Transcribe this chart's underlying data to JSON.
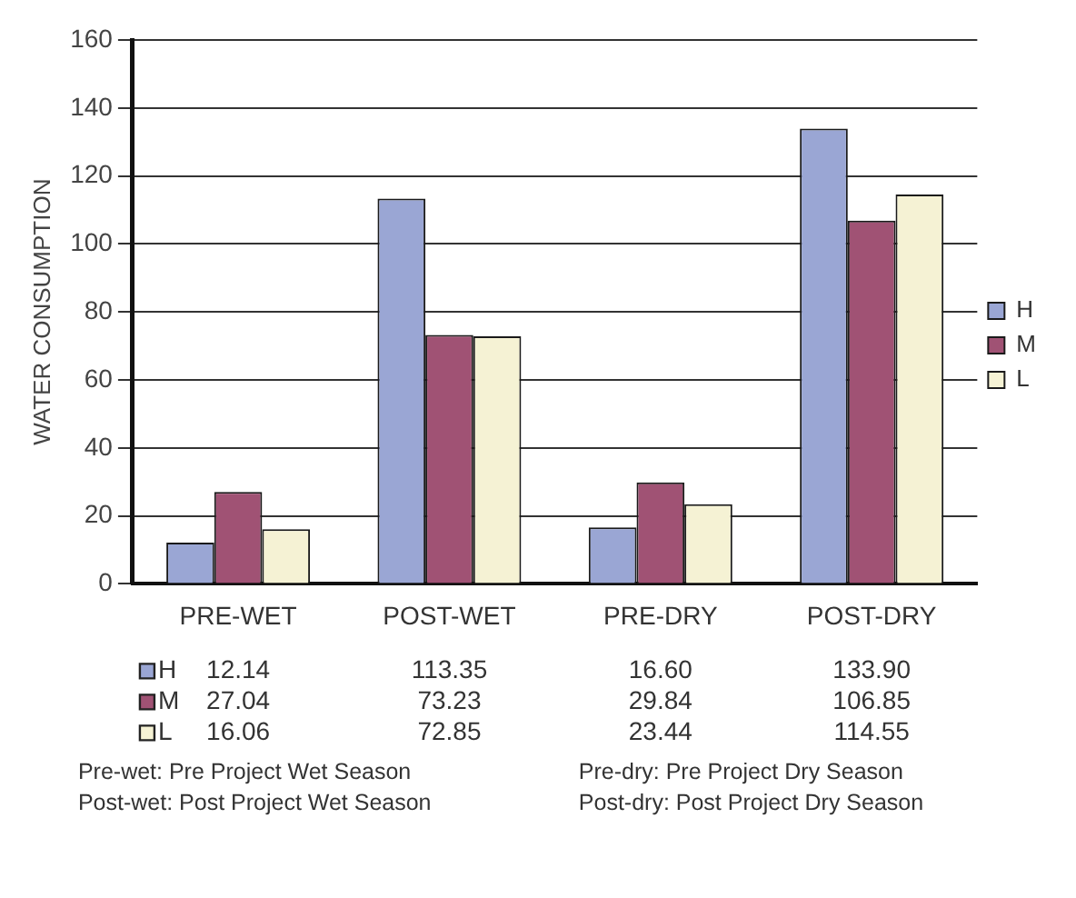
{
  "chart_data": {
    "type": "bar",
    "ylabel": "WATER CONSUMPTION",
    "categories": [
      "PRE-WET",
      "POST-WET",
      "PRE-DRY",
      "POST-DRY"
    ],
    "series": [
      {
        "name": "H",
        "color": "#9aa6d4",
        "values": [
          12.14,
          113.35,
          16.6,
          133.9
        ],
        "value_labels": [
          "12.14",
          "113.35",
          "16.60",
          "133.90"
        ]
      },
      {
        "name": "M",
        "color": "#a05274",
        "values": [
          27.04,
          73.23,
          29.84,
          106.85
        ],
        "value_labels": [
          "27.04",
          "73.23",
          "29.84",
          "106.85"
        ]
      },
      {
        "name": "L",
        "color": "#f5f2d4",
        "values": [
          16.06,
          72.85,
          23.44,
          114.55
        ],
        "value_labels": [
          "16.06",
          "72.85",
          "23.44",
          "114.55"
        ]
      }
    ],
    "ylim": [
      0,
      160
    ],
    "yticks": [
      0,
      20,
      40,
      60,
      80,
      100,
      120,
      140,
      160
    ],
    "grid": "y",
    "legend": "right",
    "annotations": [
      "Pre-wet: Pre Project Wet Season",
      "Post-wet: Post Project Wet Season",
      "Pre-dry: Pre Project Dry Season",
      "Post-dry: Post Project Dry Season"
    ]
  }
}
